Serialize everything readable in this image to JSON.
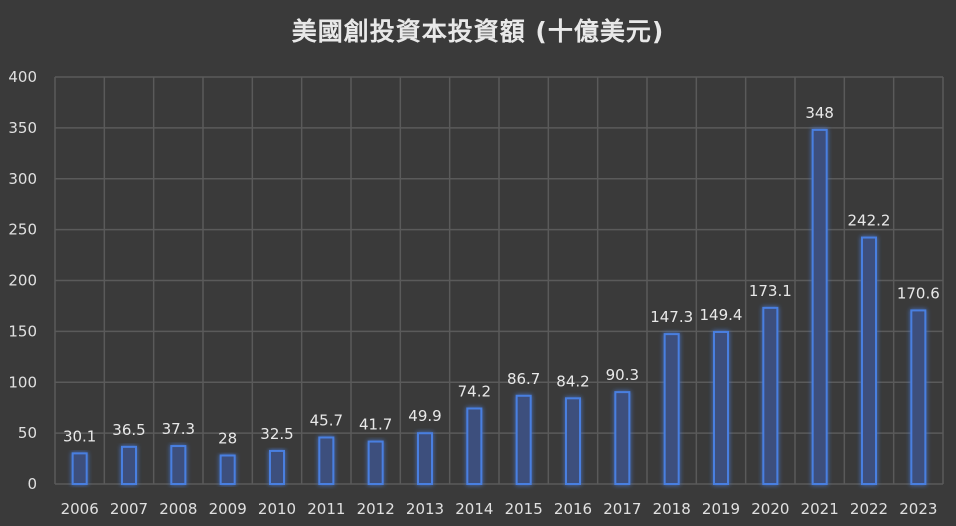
{
  "chart_data": {
    "type": "bar",
    "title": "美國創投資本投資額 (十億美元)",
    "categories": [
      "2006",
      "2007",
      "2008",
      "2009",
      "2010",
      "2011",
      "2012",
      "2013",
      "2014",
      "2015",
      "2016",
      "2017",
      "2018",
      "2019",
      "2020",
      "2021",
      "2022",
      "2023"
    ],
    "values": [
      30.1,
      36.5,
      37.3,
      28,
      32.5,
      45.7,
      41.7,
      49.9,
      74.2,
      86.7,
      84.2,
      90.3,
      147.3,
      149.4,
      173.1,
      348,
      242.2,
      170.6
    ],
    "value_labels": [
      "30.1",
      "36.5",
      "37.3",
      "28",
      "32.5",
      "45.7",
      "41.7",
      "49.9",
      "74.2",
      "86.7",
      "84.2",
      "90.3",
      "147.3",
      "149.4",
      "173.1",
      "348",
      "242.2",
      "170.6"
    ],
    "y_ticks": [
      "0",
      "50",
      "100",
      "150",
      "200",
      "250",
      "300",
      "350",
      "400"
    ],
    "ylim": [
      0,
      400
    ],
    "xlabel": "",
    "ylabel": "",
    "grid": true,
    "legend": "none",
    "colors": {
      "background": "#3a3a3a",
      "grid": "#5a5a5a",
      "bar_fill": "#3d4f7d",
      "bar_stroke": "#4a7fe0",
      "bar_glow": "#3a6fd8"
    }
  }
}
